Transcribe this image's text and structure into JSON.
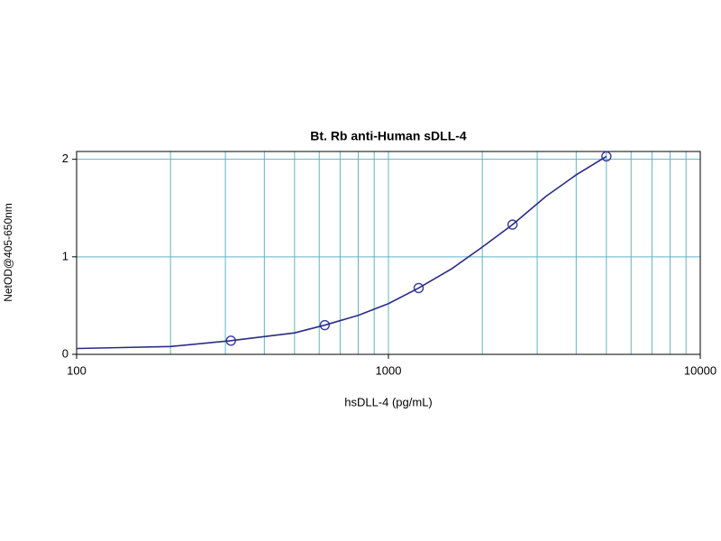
{
  "chart_data": {
    "type": "scatter",
    "title": "Bt. Rb anti-Human sDLL-4",
    "x_label": "hsDLL-4 (pg/mL)",
    "y_label": "NetOD@405-650nm",
    "xscale": "log",
    "xlim": [
      100,
      10000
    ],
    "xticks": [
      100,
      1000,
      10000
    ],
    "xminorticks": [
      200,
      300,
      400,
      500,
      600,
      700,
      800,
      900,
      2000,
      3000,
      4000,
      5000,
      6000,
      7000,
      8000,
      9000
    ],
    "ylim": [
      0,
      2.08
    ],
    "yticks": [
      0,
      1,
      2
    ],
    "grid": true,
    "grid_color": "#5fb4c6",
    "series": [
      {
        "type": "scatter",
        "color": "#3a3aa0",
        "x": [
          312.5,
          625,
          1250,
          2500,
          5000
        ],
        "values": [
          0.14,
          0.3,
          0.68,
          1.33,
          2.03
        ]
      },
      {
        "type": "line",
        "color": "#2a2a88",
        "x": [
          100,
          200,
          312.5,
          500,
          625,
          800,
          1000,
          1250,
          1600,
          2000,
          2500,
          3200,
          4000,
          5000
        ],
        "values": [
          0.06,
          0.08,
          0.14,
          0.22,
          0.3,
          0.4,
          0.52,
          0.68,
          0.88,
          1.1,
          1.33,
          1.62,
          1.84,
          2.03
        ]
      }
    ]
  }
}
